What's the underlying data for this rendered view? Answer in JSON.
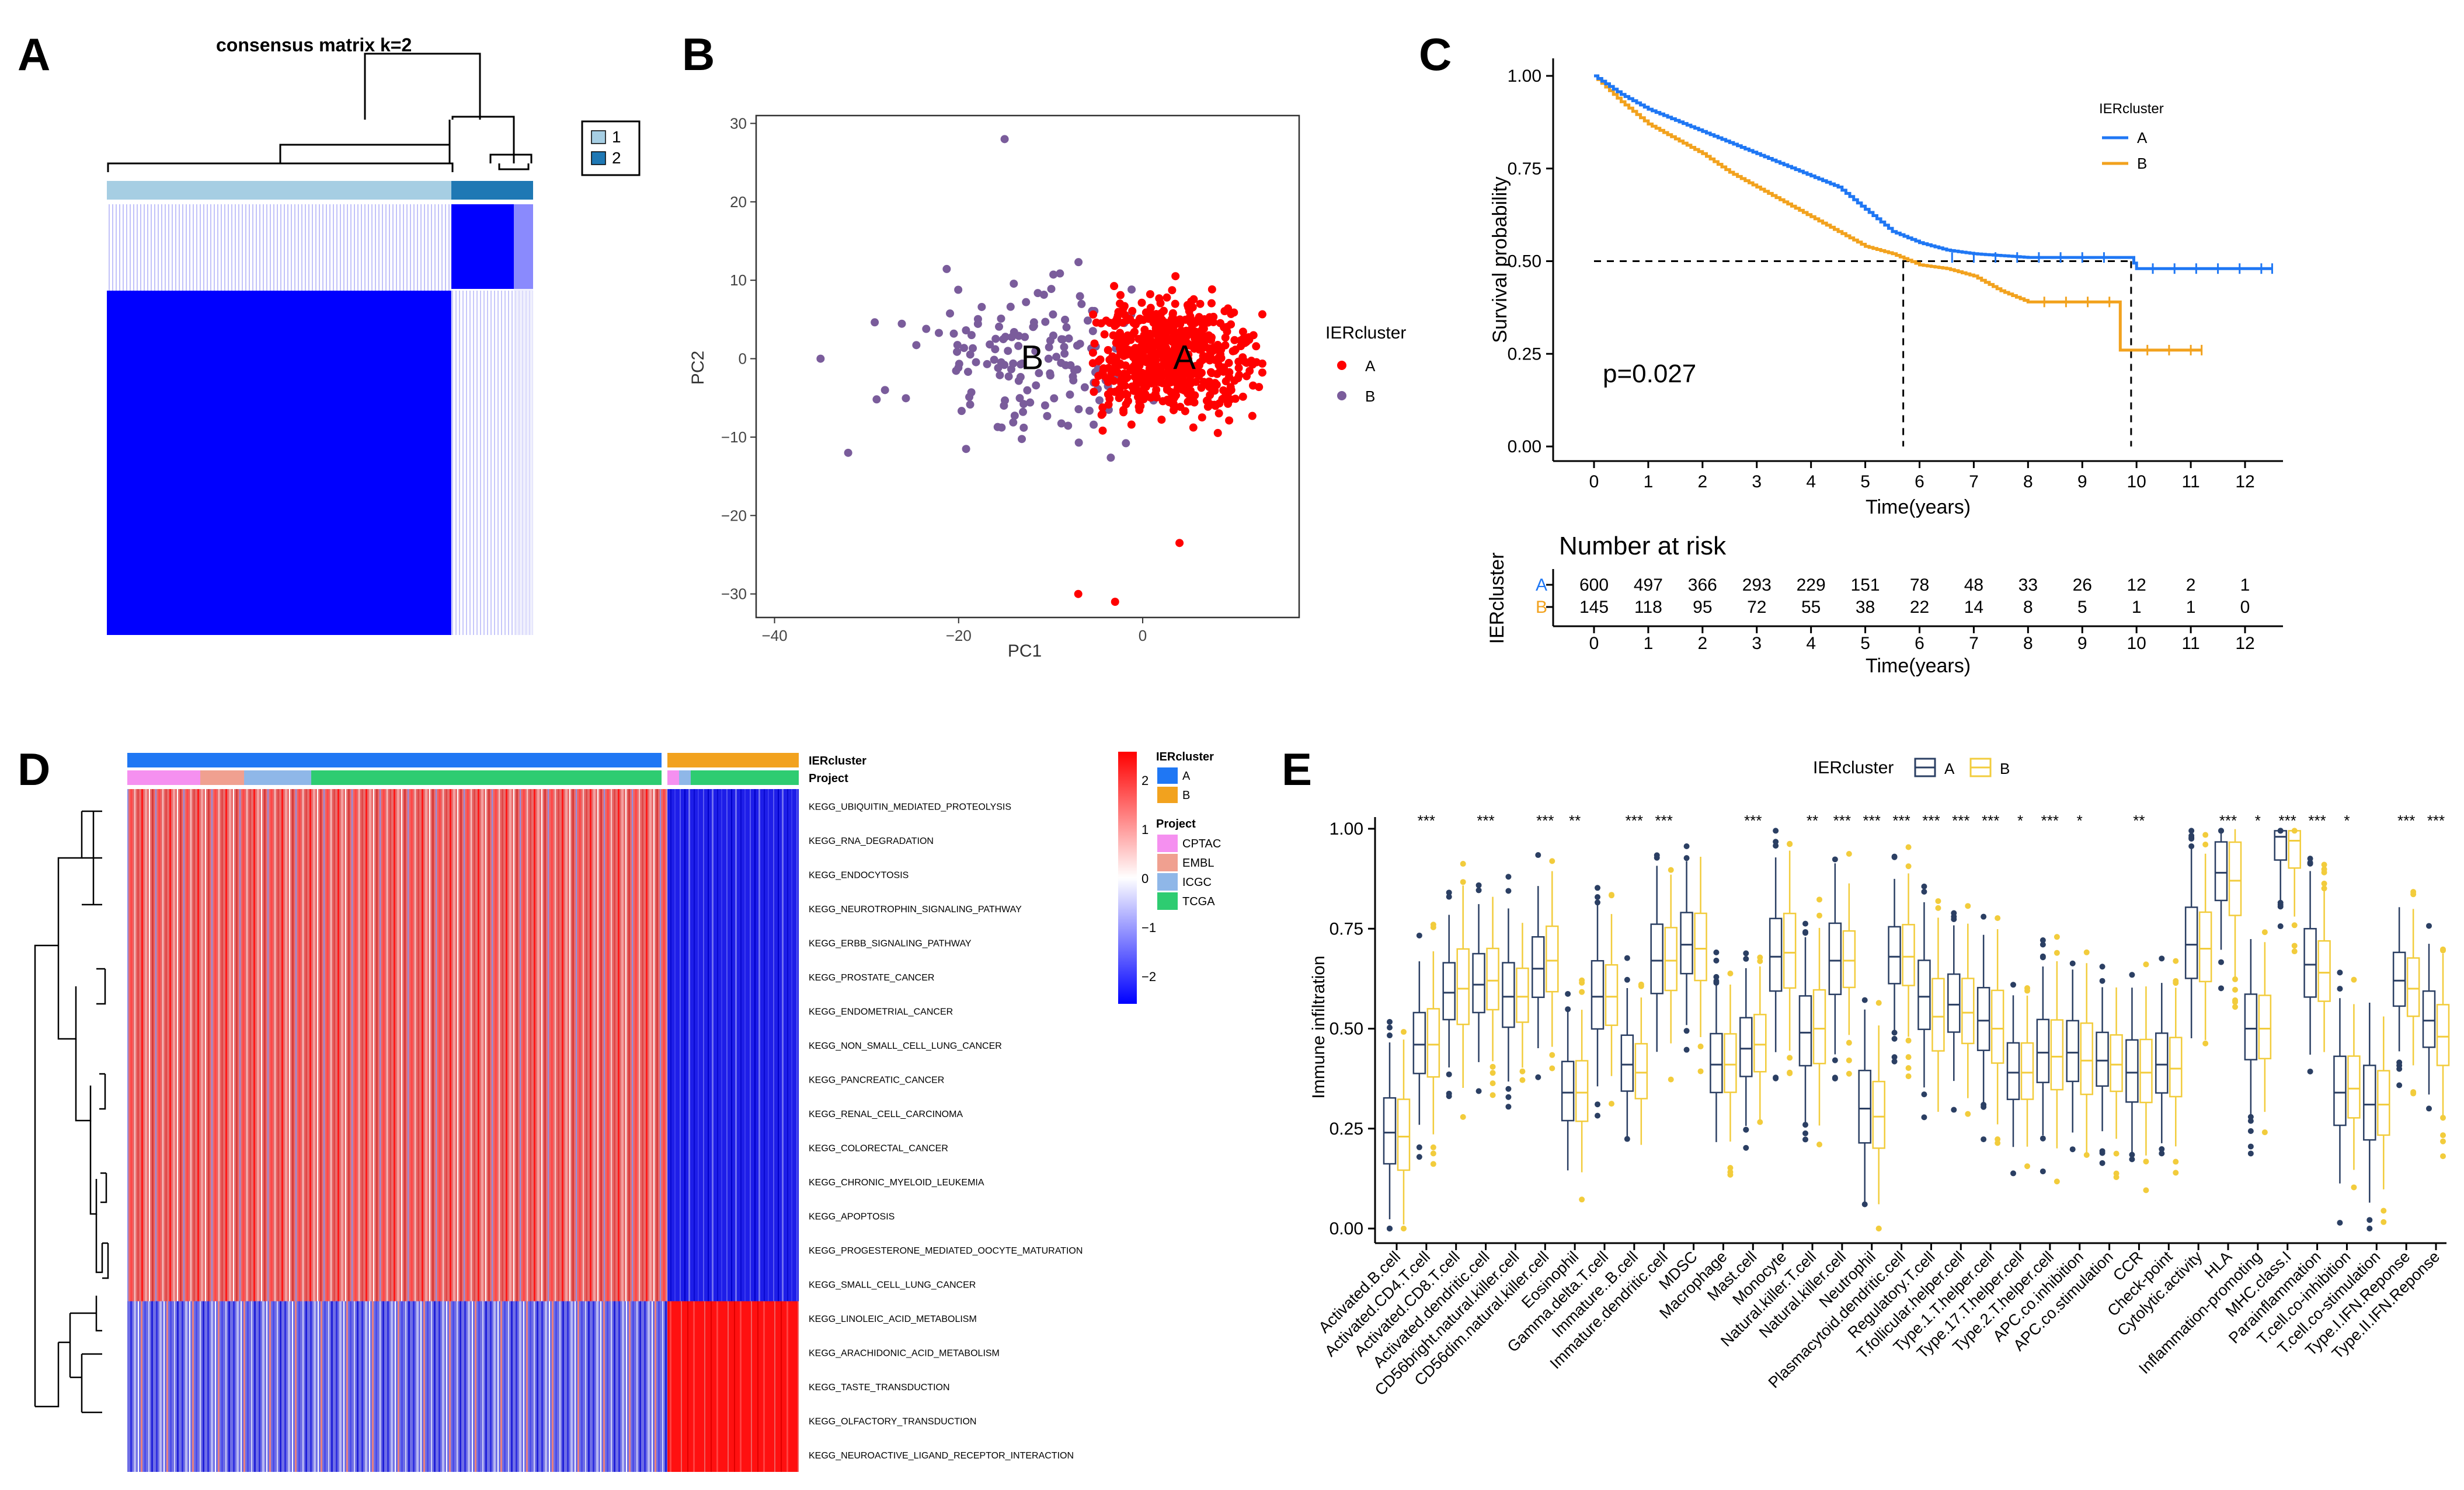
{
  "panels": {
    "A": "A",
    "B": "B",
    "C": "C",
    "D": "D",
    "E": "E"
  },
  "colors": {
    "clusterA": "#1F77F4",
    "clusterB": "#F2A21E",
    "pcaA": "#FF0000",
    "pcaB": "#7A5C9B",
    "heatHigh": "#FF0000",
    "heatLow": "#0000FF",
    "consensus": "#0000FF",
    "boxA": "#2B3F63",
    "boxB": "#F2CC3C",
    "projCPTAC": "#F590F0",
    "projEMBL": "#F0A090",
    "projICGC": "#8FB7E8",
    "projTCGA": "#2ECC71"
  },
  "chart_data": [
    {
      "panel": "A",
      "type": "heatmap",
      "title": "consensus matrix k=2",
      "legend": [
        "1",
        "2"
      ]
    },
    {
      "panel": "B",
      "type": "scatter",
      "xlabel": "PC1",
      "ylabel": "PC2",
      "xlim": [
        -42,
        17
      ],
      "ylim": [
        -33,
        31
      ],
      "xticks": [
        -40,
        -20,
        0
      ],
      "yticks": [
        30,
        20,
        10,
        0,
        -10,
        -20,
        -30
      ],
      "legend_title": "IERcluster",
      "series": [
        {
          "name": "A",
          "label": "A",
          "center": [
            2,
            0
          ]
        },
        {
          "name": "B",
          "label": "B",
          "center": [
            -12,
            0
          ]
        }
      ],
      "outliers_A": [
        [
          -7,
          -30
        ],
        [
          -3,
          -31
        ],
        [
          4,
          -23.5
        ]
      ],
      "outliers_B": [
        [
          -15,
          28
        ],
        [
          -32,
          -12
        ],
        [
          -28,
          -4
        ],
        [
          -35,
          0
        ]
      ]
    },
    {
      "panel": "C",
      "type": "line",
      "xlabel": "Time(years)",
      "ylabel": "Survival probability",
      "xlim": [
        0,
        12.5
      ],
      "ylim": [
        0,
        1
      ],
      "xticks": [
        0,
        1,
        2,
        3,
        4,
        5,
        6,
        7,
        8,
        9,
        10,
        11,
        12
      ],
      "yticks": [
        "1.00",
        "0.75",
        "0.50",
        "0.25",
        "0.00"
      ],
      "pvalue": "p=0.027",
      "legend_title": "IERcluster",
      "median_line_y": 0.5,
      "median_times": [
        5.7,
        9.9
      ],
      "series": [
        {
          "name": "A",
          "points": [
            [
              0,
              1
            ],
            [
              0.5,
              0.95
            ],
            [
              1,
              0.91
            ],
            [
              1.5,
              0.88
            ],
            [
              2,
              0.85
            ],
            [
              2.5,
              0.82
            ],
            [
              3,
              0.79
            ],
            [
              3.5,
              0.76
            ],
            [
              4,
              0.73
            ],
            [
              4.5,
              0.7
            ],
            [
              5,
              0.64
            ],
            [
              5.5,
              0.58
            ],
            [
              6,
              0.55
            ],
            [
              6.5,
              0.53
            ],
            [
              7,
              0.52
            ],
            [
              8,
              0.51
            ],
            [
              9,
              0.51
            ],
            [
              9.9,
              0.51
            ],
            [
              10,
              0.48
            ],
            [
              12.5,
              0.48
            ]
          ]
        },
        {
          "name": "B",
          "points": [
            [
              0,
              1
            ],
            [
              0.5,
              0.93
            ],
            [
              1,
              0.87
            ],
            [
              1.5,
              0.83
            ],
            [
              2,
              0.79
            ],
            [
              2.5,
              0.74
            ],
            [
              3,
              0.7
            ],
            [
              3.5,
              0.66
            ],
            [
              4,
              0.62
            ],
            [
              4.5,
              0.58
            ],
            [
              5,
              0.54
            ],
            [
              5.5,
              0.52
            ],
            [
              6,
              0.49
            ],
            [
              6.5,
              0.48
            ],
            [
              7,
              0.46
            ],
            [
              7.5,
              0.42
            ],
            [
              8,
              0.39
            ],
            [
              9,
              0.39
            ],
            [
              9.7,
              0.39
            ],
            [
              9.7,
              0.26
            ],
            [
              11.2,
              0.26
            ]
          ]
        }
      ],
      "risk_table": {
        "title": "Number at risk",
        "ylabel": "IERcluster",
        "xlabel": "Time(years)",
        "rows": [
          {
            "name": "A",
            "values": [
              "600",
              "497",
              "366",
              "293",
              "229",
              "151",
              "78",
              "48",
              "33",
              "26",
              "12",
              "2",
              "1"
            ]
          },
          {
            "name": "B",
            "values": [
              "145",
              "118",
              "95",
              "72",
              "55",
              "38",
              "22",
              "14",
              "8",
              "5",
              "1",
              "1",
              "0"
            ]
          }
        ]
      }
    },
    {
      "panel": "D",
      "type": "heatmap",
      "rows": [
        "KEGG_UBIQUITIN_MEDIATED_PROTEOLYSIS",
        "KEGG_RNA_DEGRADATION",
        "KEGG_ENDOCYTOSIS",
        "KEGG_NEUROTROPHIN_SIGNALING_PATHWAY",
        "KEGG_ERBB_SIGNALING_PATHWAY",
        "KEGG_PROSTATE_CANCER",
        "KEGG_ENDOMETRIAL_CANCER",
        "KEGG_NON_SMALL_CELL_LUNG_CANCER",
        "KEGG_PANCREATIC_CANCER",
        "KEGG_RENAL_CELL_CARCINOMA",
        "KEGG_COLORECTAL_CANCER",
        "KEGG_CHRONIC_MYELOID_LEUKEMIA",
        "KEGG_APOPTOSIS",
        "KEGG_PROGESTERONE_MEDIATED_OOCYTE_MATURATION",
        "KEGG_SMALL_CELL_LUNG_CANCER",
        "KEGG_LINOLEIC_ACID_METABOLISM",
        "KEGG_ARACHIDONIC_ACID_METABOLISM",
        "KEGG_TASTE_TRANSDUCTION",
        "KEGG_OLFACTORY_TRANSDUCTION",
        "KEGG_NEUROACTIVE_LIGAND_RECEPTOR_INTERACTION"
      ],
      "annotation_labels": [
        "IERcluster",
        "Project"
      ],
      "legend_scale": [
        "2",
        "1",
        "0",
        "−1",
        "−2"
      ],
      "legend_cluster_title": "IERcluster",
      "legend_cluster": [
        "A",
        "B"
      ],
      "legend_project_title": "Project",
      "legend_project": [
        "CPTAC",
        "EMBL",
        "ICGC",
        "TCGA"
      ]
    },
    {
      "panel": "E",
      "type": "box",
      "ylabel": "Immune infiltration",
      "yticks": [
        "1.00",
        "0.75",
        "0.50",
        "0.25",
        "0.00"
      ],
      "legend_title": "IERcluster",
      "legend": [
        "A",
        "B"
      ],
      "categories": [
        "Activated.B.cell",
        "Activated.CD4.T.cell",
        "Activated.CD8.T.cell",
        "Activated.dendritic.cell",
        "CD56bright.natural.killer.cell",
        "CD56dim.natural.killer.cell",
        "Eosinophil",
        "Gamma.delta.T.cell",
        "Immature..B.cell",
        "Immature.dendritic.cell",
        "MDSC",
        "Macrophage",
        "Mast.cell",
        "Monocyte",
        "Natural.killer.T.cell",
        "Natural.killer.cell",
        "Neutrophil",
        "Plasmacytoid.dendritic.cell",
        "Regulatory.T.cell",
        "T.follicular.helper.cell",
        "Type.1.T.helper.cell",
        "Type.17.T.helper.cell",
        "Type.2.T.helper.cell",
        "APC.co.inhibition",
        "APC.co.stimulation",
        "CCR",
        "Check-point",
        "Cytolytic.activity",
        "HLA",
        "Inflammation-promoting",
        "MHC.class.I",
        "Parainflammation",
        "T.cell.co-inhibition",
        "T.cell.co-stimulation",
        "Type.I.IFN.Reponse",
        "Type.II.IFN.Reponse"
      ],
      "significance": [
        "",
        "***",
        "",
        "***",
        "",
        "***",
        "**",
        "",
        "***",
        "***",
        "",
        "",
        "***",
        "",
        "**",
        "***",
        "***",
        "***",
        "***",
        "***",
        "***",
        "*",
        "***",
        "*",
        "",
        "**",
        "",
        "",
        "***",
        "*",
        "***",
        "***",
        "*",
        "",
        "***",
        "***"
      ],
      "medianA": [
        0.24,
        0.46,
        0.59,
        0.61,
        0.58,
        0.65,
        0.34,
        0.58,
        0.41,
        0.67,
        0.71,
        0.41,
        0.45,
        0.68,
        0.49,
        0.67,
        0.3,
        0.68,
        0.58,
        0.56,
        0.52,
        0.39,
        0.44,
        0.44,
        0.42,
        0.39,
        0.41,
        0.71,
        0.89,
        0.5,
        0.98,
        0.66,
        0.34,
        0.31,
        0.62,
        0.52
      ],
      "medianB": [
        0.23,
        0.46,
        0.6,
        0.62,
        0.58,
        0.67,
        0.34,
        0.58,
        0.39,
        0.67,
        0.7,
        0.41,
        0.46,
        0.69,
        0.5,
        0.67,
        0.28,
        0.68,
        0.53,
        0.54,
        0.5,
        0.39,
        0.43,
        0.42,
        0.41,
        0.39,
        0.4,
        0.7,
        0.87,
        0.5,
        0.97,
        0.64,
        0.35,
        0.31,
        0.6,
        0.48
      ]
    }
  ]
}
